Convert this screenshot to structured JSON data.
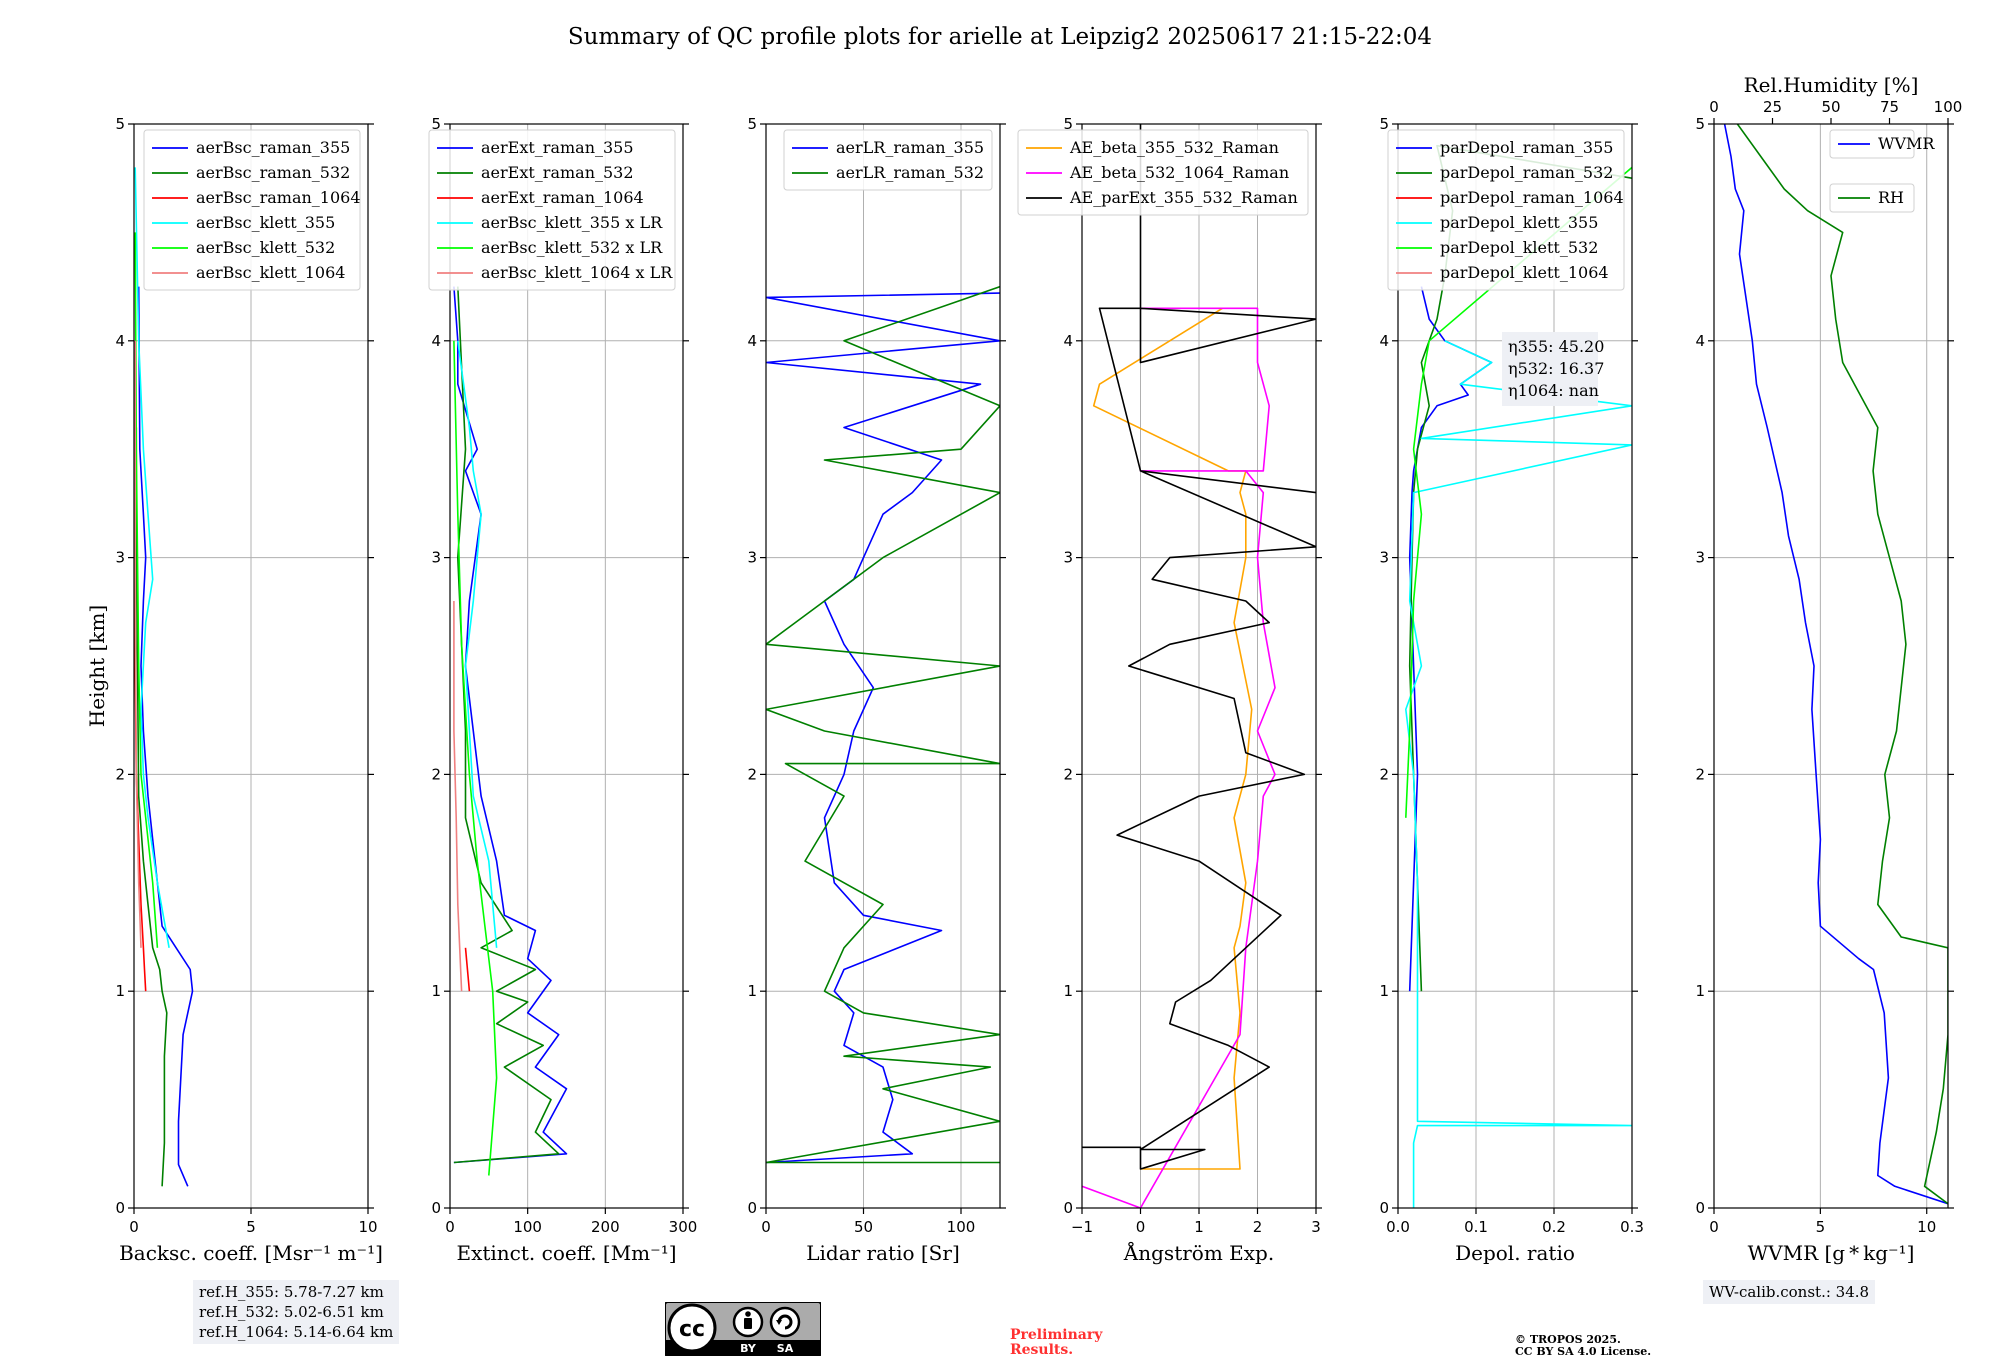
{
  "title": "Summary of QC profile plots for arielle at Leipzig2 20250617 21:15-22:04",
  "colors": {
    "blue": "#0000ff",
    "green": "#008000",
    "red": "#ff0000",
    "cyan": "#00ffff",
    "lime": "#00ff00",
    "salmon": "#f08080",
    "orange": "#ffa500",
    "magenta": "#ff00ff",
    "black": "#000000",
    "grid": "#b0b0b0"
  },
  "chart_data": [
    {
      "type": "line",
      "ylabel": "Height [km]",
      "xlabel": "Backsc. coeff. [Msr⁻¹ m⁻¹]",
      "xlim": [
        0,
        10
      ],
      "ylim": [
        0,
        5
      ],
      "xticks": [
        0,
        5,
        10
      ],
      "yticks": [
        0,
        1,
        2,
        3,
        4,
        5
      ],
      "grid": true,
      "legend": "top-right",
      "series": [
        {
          "name": "aerBsc_raman_355",
          "color": "#0000ff",
          "x": [
            2.3,
            1.9,
            1.9,
            2.0,
            2.1,
            2.5,
            2.4,
            1.8,
            1.2,
            1.0,
            0.8,
            0.6,
            0.4,
            0.3,
            0.4,
            0.5,
            0.4,
            0.3,
            0.25,
            0.2
          ],
          "y": [
            0.1,
            0.2,
            0.4,
            0.6,
            0.8,
            1.0,
            1.1,
            1.2,
            1.3,
            1.5,
            1.7,
            1.9,
            2.2,
            2.5,
            2.8,
            3.0,
            3.2,
            3.4,
            3.5,
            4.25
          ]
        },
        {
          "name": "aerBsc_raman_532",
          "color": "#008000",
          "x": [
            1.2,
            1.3,
            1.3,
            1.3,
            1.4,
            1.2,
            1.1,
            0.8,
            0.6,
            0.4,
            0.2,
            0.15,
            0.1,
            0.1
          ],
          "y": [
            0.1,
            0.3,
            0.5,
            0.7,
            0.9,
            1.0,
            1.1,
            1.2,
            1.4,
            1.6,
            1.9,
            2.5,
            3.0,
            3.6
          ]
        },
        {
          "name": "aerBsc_raman_1064",
          "color": "#ff0000",
          "x": [
            0.5,
            0.45,
            0.4,
            0.3,
            0.2,
            0.1,
            0.05,
            0.05
          ],
          "y": [
            1.0,
            1.1,
            1.2,
            1.4,
            1.7,
            2.0,
            2.5,
            3.5
          ]
        },
        {
          "name": "aerBsc_klett_355",
          "color": "#00ffff",
          "x": [
            1.5,
            1.0,
            0.6,
            0.4,
            0.3,
            0.5,
            0.8,
            0.6,
            0.4,
            0.2,
            0.05
          ],
          "y": [
            1.2,
            1.5,
            1.8,
            2.0,
            2.3,
            2.7,
            2.9,
            3.2,
            3.5,
            4.0,
            4.8
          ]
        },
        {
          "name": "aerBsc_klett_532",
          "color": "#00ff00",
          "x": [
            1.0,
            0.8,
            0.5,
            0.3,
            0.2,
            0.15,
            0.1,
            0.05
          ],
          "y": [
            1.2,
            1.5,
            1.8,
            2.0,
            2.5,
            3.0,
            3.5,
            4.5
          ]
        },
        {
          "name": "aerBsc_klett_1064",
          "color": "#f08080",
          "x": [
            0.3,
            0.2,
            0.1,
            0.05,
            0.05
          ],
          "y": [
            1.2,
            1.5,
            2.0,
            3.0,
            4.0
          ]
        }
      ]
    },
    {
      "type": "line",
      "xlabel": "Extinct. coeff. [Mm⁻¹]",
      "xlim": [
        0,
        300
      ],
      "ylim": [
        0,
        5
      ],
      "xticks": [
        0,
        100,
        200,
        300
      ],
      "yticks": [
        0,
        1,
        2,
        3,
        4,
        5
      ],
      "grid": true,
      "legend": "top-right",
      "series": [
        {
          "name": "aerExt_raman_355",
          "color": "#0000ff",
          "x": [
            5,
            150,
            120,
            150,
            110,
            140,
            100,
            130,
            100,
            110,
            70,
            60,
            40,
            30,
            20,
            25,
            40,
            20,
            35,
            10,
            10,
            5
          ],
          "y": [
            0.21,
            0.25,
            0.35,
            0.55,
            0.65,
            0.8,
            0.9,
            1.05,
            1.15,
            1.28,
            1.35,
            1.6,
            1.9,
            2.2,
            2.5,
            2.8,
            3.2,
            3.4,
            3.5,
            3.8,
            4.0,
            4.25
          ]
        },
        {
          "name": "aerExt_raman_532",
          "color": "#008000",
          "x": [
            5,
            140,
            110,
            130,
            70,
            120,
            60,
            100,
            60,
            110,
            40,
            80,
            40,
            20,
            20,
            15,
            10,
            20,
            10
          ],
          "y": [
            0.21,
            0.25,
            0.35,
            0.5,
            0.65,
            0.75,
            0.85,
            0.95,
            1.0,
            1.1,
            1.2,
            1.28,
            1.5,
            1.8,
            2.2,
            2.6,
            3.0,
            3.5,
            4.25
          ]
        },
        {
          "name": "aerExt_raman_1064",
          "color": "#ff0000",
          "x": [
            25,
            20
          ],
          "y": [
            1.0,
            1.2
          ]
        },
        {
          "name": "aerBsc_klett_355 x LR",
          "color": "#00ffff",
          "x": [
            60,
            50,
            30,
            25,
            20,
            30,
            35,
            40,
            30,
            25,
            10
          ],
          "y": [
            1.2,
            1.6,
            1.9,
            2.2,
            2.5,
            2.8,
            3.0,
            3.2,
            3.4,
            3.6,
            4.0
          ]
        },
        {
          "name": "aerBsc_klett_532 x LR",
          "color": "#00ff00",
          "x": [
            50,
            60,
            55,
            45,
            35,
            25,
            15,
            10,
            5
          ],
          "y": [
            0.15,
            0.6,
            1.0,
            1.3,
            1.6,
            2.0,
            2.6,
            3.2,
            4.0
          ]
        },
        {
          "name": "aerBsc_klett_1064 x LR",
          "color": "#f08080",
          "x": [
            15,
            10,
            8,
            5,
            5
          ],
          "y": [
            1.0,
            1.4,
            1.8,
            2.2,
            2.8
          ]
        }
      ]
    },
    {
      "type": "line",
      "xlabel": "Lidar ratio [Sr]",
      "xlim": [
        0,
        120
      ],
      "ylim": [
        0,
        5
      ],
      "xticks": [
        0,
        50,
        100
      ],
      "yticks": [
        0,
        1,
        2,
        3,
        4,
        5
      ],
      "grid": true,
      "legend": "top-right",
      "series": [
        {
          "name": "aerLR_raman_355",
          "color": "#0000ff",
          "x": [
            0,
            75,
            60,
            65,
            60,
            40,
            45,
            35,
            40,
            90,
            50,
            35,
            30,
            40,
            45,
            55,
            40,
            30,
            45,
            50,
            60,
            75,
            90,
            40,
            110,
            0,
            120,
            0,
            120
          ],
          "y": [
            0.21,
            0.25,
            0.35,
            0.5,
            0.65,
            0.75,
            0.9,
            1.0,
            1.1,
            1.28,
            1.35,
            1.5,
            1.8,
            2.0,
            2.2,
            2.4,
            2.6,
            2.8,
            2.9,
            3.0,
            3.2,
            3.3,
            3.45,
            3.6,
            3.8,
            3.9,
            4.0,
            4.2,
            4.22
          ]
        },
        {
          "name": "aerLR_raman_532",
          "color": "#008000",
          "x": [
            120,
            0,
            120,
            60,
            115,
            40,
            120,
            50,
            30,
            40,
            60,
            20,
            40,
            10,
            120,
            30,
            0,
            120,
            0,
            30,
            60,
            120,
            30,
            100,
            120,
            40,
            120
          ],
          "y": [
            0.21,
            0.21,
            0.4,
            0.55,
            0.65,
            0.7,
            0.8,
            0.9,
            1.0,
            1.2,
            1.4,
            1.6,
            1.9,
            2.05,
            2.05,
            2.2,
            2.3,
            2.5,
            2.6,
            2.8,
            3.0,
            3.3,
            3.45,
            3.5,
            3.7,
            4.0,
            4.25
          ]
        }
      ]
    },
    {
      "type": "line",
      "xlabel": "Ångström Exp.",
      "xlim": [
        -1,
        3
      ],
      "ylim": [
        0,
        5
      ],
      "xticks": [
        -1,
        0,
        1,
        2,
        3
      ],
      "yticks": [
        0,
        1,
        2,
        3,
        4,
        5
      ],
      "grid": true,
      "legend": "top-right",
      "series": [
        {
          "name": "AE_beta_355_532_Raman",
          "color": "#ffa500",
          "x": [
            0,
            1.7,
            1.6,
            1.7,
            1.6,
            1.7,
            1.8,
            1.6,
            1.8,
            1.9,
            1.6,
            1.8,
            1.8,
            1.7,
            1.8,
            1.5,
            -0.8,
            -0.7,
            0.5,
            1.4
          ],
          "y": [
            0.18,
            0.18,
            0.6,
            0.9,
            1.2,
            1.3,
            1.5,
            1.8,
            2.0,
            2.3,
            2.7,
            3.0,
            3.2,
            3.3,
            3.4,
            3.4,
            3.7,
            3.8,
            4.0,
            4.15
          ]
        },
        {
          "name": "AE_beta_532_1064_Raman",
          "color": "#ff00ff",
          "x": [
            -1,
            0,
            1.7,
            1.8,
            2.0,
            2.1,
            2.3,
            2.0,
            2.3,
            2.1,
            2.0,
            2.1,
            1.8,
            0,
            2.1,
            2.2,
            2.0,
            2.0,
            0
          ],
          "y": [
            0.1,
            0.0,
            0.8,
            1.2,
            1.6,
            1.9,
            2.0,
            2.2,
            2.4,
            2.7,
            3.0,
            3.3,
            3.4,
            3.4,
            3.4,
            3.7,
            3.9,
            4.15,
            4.15
          ]
        },
        {
          "name": "AE_parExt_355_532_Raman",
          "color": "#000000",
          "x": [
            -1,
            0,
            0,
            1.1,
            0,
            2.2,
            1.5,
            0.5,
            0.6,
            1.2,
            1.8,
            2.4,
            1.0,
            -0.4,
            1.0,
            2.8,
            1.8,
            1.6,
            -0.2,
            0.5,
            2.2,
            1.8,
            0.2,
            0.5,
            3,
            0,
            3,
            0,
            -0.7,
            0,
            3,
            0,
            0
          ],
          "y": [
            0.28,
            0.28,
            0.18,
            0.27,
            0.27,
            0.65,
            0.75,
            0.85,
            0.95,
            1.05,
            1.2,
            1.35,
            1.6,
            1.72,
            1.9,
            2.0,
            2.1,
            2.35,
            2.5,
            2.6,
            2.7,
            2.8,
            2.9,
            3.0,
            3.05,
            3.4,
            3.3,
            3.4,
            4.15,
            4.15,
            4.1,
            3.9,
            5.0
          ]
        }
      ]
    },
    {
      "type": "line",
      "xlabel": "Depol. ratio",
      "xlim": [
        0,
        0.3
      ],
      "ylim": [
        0,
        5
      ],
      "xticks": [
        0.0,
        0.1,
        0.2,
        0.3
      ],
      "yticks": [
        0,
        1,
        2,
        3,
        4,
        5
      ],
      "grid": true,
      "legend": "top-right",
      "annotation": [
        "η355: 45.20",
        "η532: 16.37",
        "η1064: nan"
      ],
      "series": [
        {
          "name": "parDepol_raman_355",
          "color": "#0000ff",
          "x": [
            0.015,
            0.02,
            0.025,
            0.02,
            0.015,
            0.018,
            0.02,
            0.025,
            0.03,
            0.05,
            0.09,
            0.08,
            0.12,
            0.06,
            0.04,
            0.03
          ],
          "y": [
            1.0,
            1.5,
            2.0,
            2.5,
            3.0,
            3.3,
            3.4,
            3.5,
            3.6,
            3.7,
            3.75,
            3.8,
            3.9,
            4.0,
            4.1,
            4.25
          ]
        },
        {
          "name": "parDepol_raman_532",
          "color": "#008000",
          "x": [
            0.03,
            0.025,
            0.02,
            0.015,
            0.018,
            0.02,
            0.025,
            0.04,
            0.03,
            0.05,
            0.06,
            0.07,
            0.05,
            0.3
          ],
          "y": [
            1.0,
            1.5,
            2.0,
            2.5,
            3.0,
            3.3,
            3.5,
            3.7,
            3.9,
            4.1,
            4.3,
            4.6,
            4.9,
            4.75
          ]
        },
        {
          "name": "parDepol_raman_1064",
          "color": "#ff0000",
          "x": [],
          "y": []
        },
        {
          "name": "parDepol_klett_355",
          "color": "#00ffff",
          "x": [
            0.02,
            0.02,
            0.025,
            0.3,
            0.025,
            0.025,
            0.025,
            0.02,
            0.01,
            0.03,
            0.015,
            0.02,
            0.3,
            0.03,
            0.3,
            0.08,
            0.12,
            0.06
          ],
          "y": [
            0.0,
            0.3,
            0.38,
            0.38,
            0.4,
            1.0,
            1.5,
            2.0,
            2.3,
            2.5,
            2.8,
            3.3,
            3.52,
            3.55,
            3.7,
            3.8,
            3.9,
            4.0
          ]
        },
        {
          "name": "parDepol_klett_532",
          "color": "#00ff00",
          "x": [
            0.01,
            0.015,
            0.02,
            0.03,
            0.02,
            0.03,
            0.04,
            0.3
          ],
          "y": [
            1.8,
            2.2,
            2.8,
            3.2,
            3.5,
            3.8,
            4.0,
            4.8
          ]
        },
        {
          "name": "parDepol_klett_1064",
          "color": "#f08080",
          "x": [],
          "y": []
        }
      ]
    },
    {
      "type": "line",
      "xlabel": "WVMR [g * kg⁻¹]",
      "x2label": "Rel.Humidity [%]",
      "xlim": [
        0,
        11
      ],
      "x2lim": [
        0,
        100
      ],
      "ylim": [
        0,
        5
      ],
      "xticks": [
        0,
        5,
        10
      ],
      "x2ticks": [
        0,
        25,
        50,
        75,
        100
      ],
      "yticks": [
        0,
        1,
        2,
        3,
        4,
        5
      ],
      "grid": true,
      "legend": "top-right",
      "series": [
        {
          "name": "WVMR",
          "color": "#0000ff",
          "x": [
            11,
            8.5,
            7.7,
            7.8,
            8.2,
            8.0,
            7.5,
            6.8,
            5.0,
            4.9,
            5.0,
            4.8,
            4.6,
            4.7,
            4.3,
            4.0,
            3.5,
            3.2,
            2.5,
            2.0,
            1.8,
            1.5,
            1.2,
            1.4,
            1.0,
            0.8,
            0.5
          ],
          "y": [
            0.02,
            0.1,
            0.15,
            0.3,
            0.6,
            0.9,
            1.1,
            1.15,
            1.3,
            1.5,
            1.7,
            2.0,
            2.3,
            2.5,
            2.7,
            2.9,
            3.1,
            3.3,
            3.6,
            3.8,
            4.0,
            4.2,
            4.4,
            4.6,
            4.7,
            4.85,
            5.0
          ]
        },
        {
          "name": "RH",
          "color": "#008000",
          "x2": [
            100,
            90,
            92,
            95,
            98,
            100,
            100,
            100,
            100,
            80,
            70,
            72,
            75,
            73,
            78,
            80,
            82,
            80,
            75,
            70,
            68,
            70,
            60,
            55,
            52,
            50,
            55,
            40,
            30,
            20,
            10
          ],
          "y": [
            0.02,
            0.1,
            0.2,
            0.35,
            0.55,
            0.8,
            0.95,
            1.0,
            1.2,
            1.25,
            1.4,
            1.6,
            1.8,
            2.0,
            2.2,
            2.4,
            2.6,
            2.8,
            3.0,
            3.2,
            3.4,
            3.6,
            3.8,
            3.9,
            4.1,
            4.3,
            4.5,
            4.6,
            4.7,
            4.85,
            5.0
          ]
        }
      ]
    }
  ],
  "notes": {
    "refH": [
      "ref.H_355: 5.78-7.27 km",
      "ref.H_532: 5.02-6.51 km",
      "ref.H_1064: 5.14-6.64 km"
    ],
    "wv_calib": "WV-calib.const.: 34.8",
    "preliminary": [
      "Preliminary",
      "Results."
    ],
    "copyright": [
      "© TROPOS 2025.",
      "CC BY SA 4.0 License."
    ],
    "license_badge": {
      "top": "cc",
      "bottom_left": "BY",
      "bottom_right": "SA"
    }
  }
}
